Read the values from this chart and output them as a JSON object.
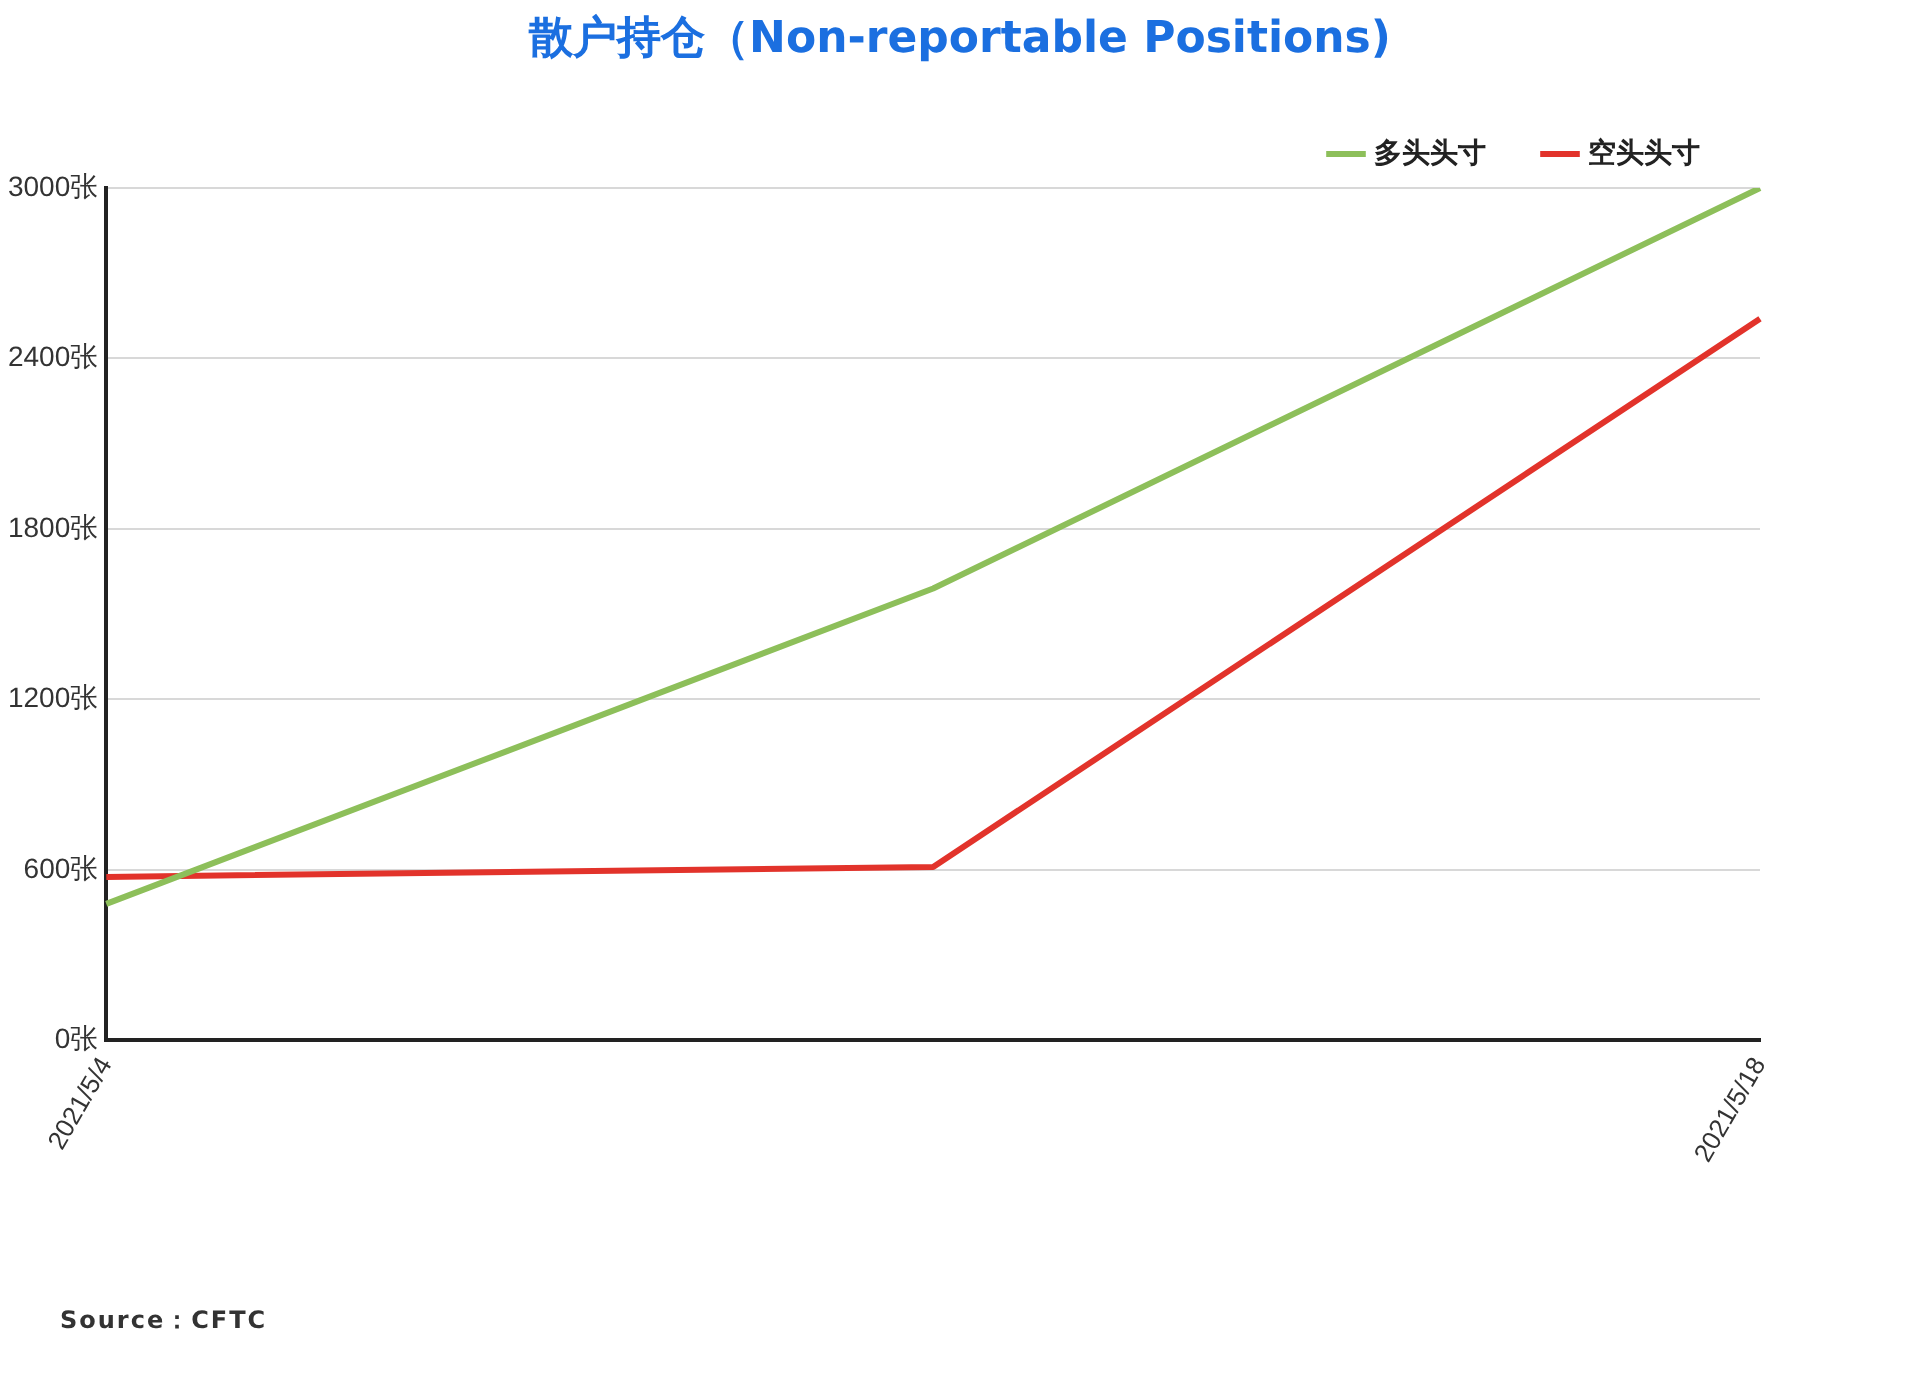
{
  "chart_data": {
    "type": "line",
    "title": "散户持仓（Non-reportable Positions)",
    "categories": [
      "2021/5/4",
      null,
      "2021/5/18"
    ],
    "series": [
      {
        "name": "多头头寸",
        "color": "#8dbf5a",
        "values": [
          480,
          1590,
          3000
        ]
      },
      {
        "name": "空头头寸",
        "color": "#e2332b",
        "values": [
          575,
          610,
          2540
        ]
      }
    ],
    "ylim": [
      0,
      3000
    ],
    "yticks": [
      {
        "value": 0,
        "label": "0张"
      },
      {
        "value": 600,
        "label": "600张"
      },
      {
        "value": 1200,
        "label": "1200张"
      },
      {
        "value": 1800,
        "label": "1800张"
      },
      {
        "value": 2400,
        "label": "2400张"
      },
      {
        "value": 3000,
        "label": "3000张"
      }
    ],
    "grid": "y",
    "legend": "top right",
    "marker": "none",
    "line_style": "solid",
    "annotations": [
      "Source：CFTC"
    ]
  }
}
